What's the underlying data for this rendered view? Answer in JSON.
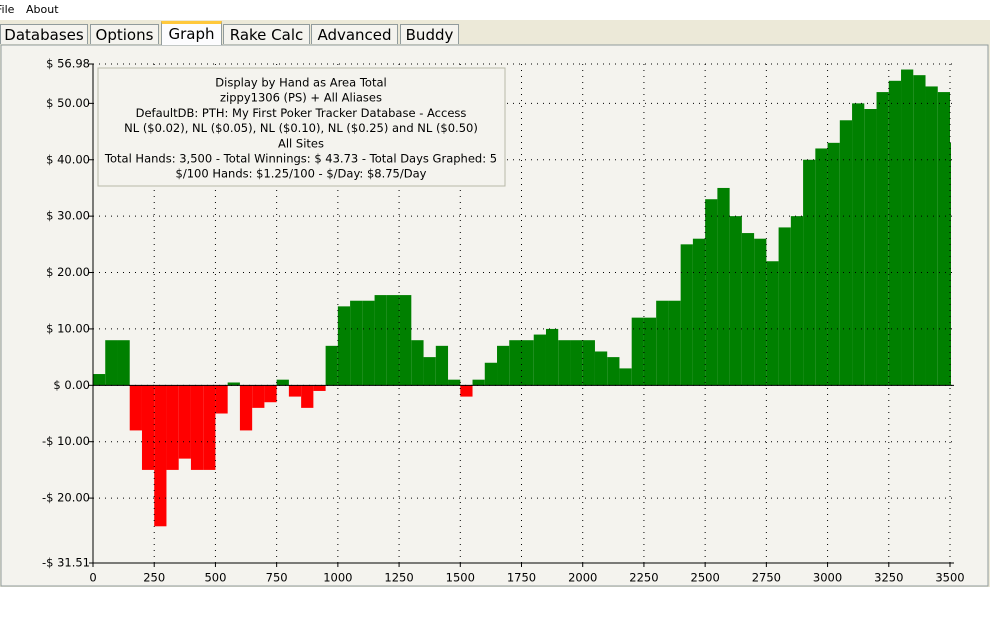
{
  "menu": [
    "File",
    "About"
  ],
  "tabs": [
    "Databases",
    "Options",
    "Graph",
    "Rake Calc",
    "Advanced",
    "Buddy"
  ],
  "active_tab": 2,
  "chart_data": {
    "type": "area",
    "info": [
      "Display by Hand as Area Total",
      "zippy1306 (PS) + All Aliases",
      "DefaultDB: PTH: My First Poker Tracker Database - Access",
      "NL ($0.02), NL ($0.05), NL ($0.10), NL ($0.25) and NL ($0.50)",
      "All Sites",
      "Total Hands: 3,500 - Total Winnings: $ 43.73 - Total Days Graphed: 5",
      "$/100 Hands: $1.25/100 - $/Day: $8.75/Day"
    ],
    "x": [
      0,
      50,
      100,
      150,
      200,
      250,
      300,
      350,
      400,
      450,
      500,
      550,
      600,
      650,
      700,
      750,
      800,
      850,
      900,
      950,
      1000,
      1050,
      1100,
      1150,
      1200,
      1250,
      1300,
      1350,
      1400,
      1450,
      1500,
      1550,
      1600,
      1650,
      1700,
      1750,
      1800,
      1850,
      1900,
      1950,
      2000,
      2050,
      2100,
      2150,
      2200,
      2250,
      2300,
      2350,
      2400,
      2450,
      2500,
      2550,
      2600,
      2650,
      2700,
      2750,
      2800,
      2850,
      2900,
      2950,
      3000,
      3050,
      3100,
      3150,
      3200,
      3250,
      3300,
      3350,
      3400,
      3450,
      3500
    ],
    "values": [
      2,
      8,
      8,
      -8,
      -15,
      -25,
      -15,
      -13,
      -15,
      -15,
      -5,
      0.5,
      -8,
      -4,
      -3,
      1,
      -2,
      -4,
      -1,
      7,
      14,
      15,
      15,
      16,
      16,
      16,
      8,
      5,
      7,
      1,
      -2,
      1,
      4,
      7,
      8,
      8,
      9,
      10,
      8,
      8,
      8,
      6,
      5,
      3,
      12,
      12,
      15,
      15,
      25,
      26,
      33,
      35,
      30,
      27,
      26,
      22,
      28,
      30,
      40,
      42,
      43,
      47,
      50,
      49,
      52,
      54,
      56,
      55,
      53,
      52,
      43
    ],
    "positive_color": "#008000",
    "negative_color": "#ff0000",
    "xlim": [
      0,
      3500
    ],
    "ylim": [
      -31.51,
      56.98
    ],
    "xticks": [
      0,
      250,
      500,
      750,
      1000,
      1250,
      1500,
      1750,
      2000,
      2250,
      2500,
      2750,
      3000,
      3250,
      3500
    ],
    "yticks": [
      {
        "value": 56.98,
        "label": "$ 56.98"
      },
      {
        "value": 50,
        "label": "$ 50.00"
      },
      {
        "value": 40,
        "label": "$ 40.00"
      },
      {
        "value": 30,
        "label": "$ 30.00"
      },
      {
        "value": 20,
        "label": "$ 20.00"
      },
      {
        "value": 10,
        "label": "$ 10.00"
      },
      {
        "value": 0,
        "label": "$ 0.00"
      },
      {
        "value": -10,
        "label": "-$ 10.00"
      },
      {
        "value": -20,
        "label": "-$ 20.00"
      },
      {
        "value": -31.51,
        "label": "-$ 31.51"
      }
    ],
    "grid": true
  }
}
